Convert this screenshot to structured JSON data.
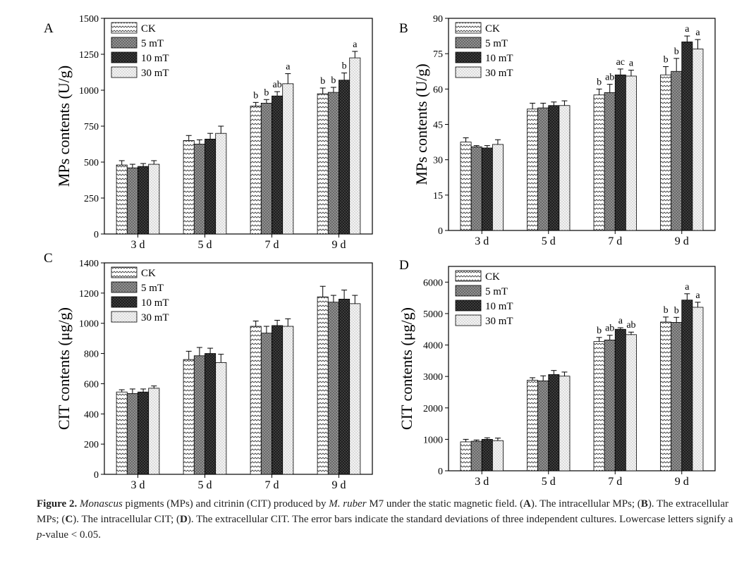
{
  "chart_data": [
    {
      "type": "bar",
      "panel_label": "A",
      "ylabel": "MPs contents (U/g)",
      "yticks": [
        "0",
        "250",
        "500",
        "750",
        "1000",
        "1250",
        "1500"
      ],
      "ylim": [
        0,
        1500
      ],
      "categories": [
        "3 d",
        "5 d",
        "7 d",
        "9 d"
      ],
      "legend_position": "top-left",
      "series": [
        {
          "name": "CK",
          "values": [
            480,
            650,
            890,
            975
          ],
          "errors": [
            30,
            35,
            25,
            40
          ],
          "letters": [
            "",
            "",
            "b",
            "b"
          ]
        },
        {
          "name": "5 mT",
          "values": [
            460,
            625,
            910,
            985
          ],
          "errors": [
            25,
            30,
            25,
            35
          ],
          "letters": [
            "",
            "",
            "b",
            "b"
          ]
        },
        {
          "name": "10 mT",
          "values": [
            470,
            660,
            960,
            1070
          ],
          "errors": [
            20,
            40,
            30,
            50
          ],
          "letters": [
            "",
            "",
            "ab",
            "b"
          ]
        },
        {
          "name": "30 mT",
          "values": [
            485,
            700,
            1045,
            1225
          ],
          "errors": [
            25,
            50,
            70,
            45
          ],
          "letters": [
            "",
            "",
            "a",
            "a"
          ]
        }
      ]
    },
    {
      "type": "bar",
      "panel_label": "B",
      "ylabel": "MPs contents (U/g)",
      "yticks": [
        "0",
        "15",
        "30",
        "45",
        "60",
        "75",
        "90"
      ],
      "ylim": [
        0,
        90
      ],
      "categories": [
        "3 d",
        "5 d",
        "7 d",
        "9 d"
      ],
      "legend_position": "top-left",
      "series": [
        {
          "name": "CK",
          "values": [
            37.5,
            51.5,
            57.5,
            66
          ],
          "errors": [
            1.8,
            2.5,
            2.5,
            3.5
          ],
          "letters": [
            "",
            "",
            "b",
            "b"
          ]
        },
        {
          "name": "5 mT",
          "values": [
            35.5,
            52,
            58.5,
            67.5
          ],
          "errors": [
            0.5,
            2,
            3.5,
            5.5
          ],
          "letters": [
            "",
            "",
            "ab",
            "b"
          ]
        },
        {
          "name": "10 mT",
          "values": [
            35,
            53,
            66,
            80
          ],
          "errors": [
            1,
            1.5,
            2.5,
            2.5
          ],
          "letters": [
            "",
            "",
            "ac",
            "a"
          ]
        },
        {
          "name": "30 mT",
          "values": [
            36.5,
            53,
            65.5,
            77
          ],
          "errors": [
            2,
            2,
            2.5,
            4
          ],
          "letters": [
            "",
            "",
            "a",
            "a"
          ]
        }
      ]
    },
    {
      "type": "bar",
      "panel_label": "C",
      "ylabel": "CIT contents (μg/g)",
      "yticks": [
        "0",
        "200",
        "400",
        "600",
        "800",
        "1000",
        "1200",
        "1400"
      ],
      "ylim": [
        0,
        1400
      ],
      "categories": [
        "3 d",
        "5 d",
        "7 d",
        "9 d"
      ],
      "legend_position": "top-left",
      "series": [
        {
          "name": "CK",
          "values": [
            545,
            760,
            980,
            1175
          ],
          "errors": [
            15,
            55,
            35,
            70
          ],
          "letters": [
            "",
            "",
            "",
            ""
          ]
        },
        {
          "name": "5 mT",
          "values": [
            535,
            785,
            935,
            1140
          ],
          "errors": [
            30,
            55,
            45,
            45
          ],
          "letters": [
            "",
            "",
            "",
            ""
          ]
        },
        {
          "name": "10 mT",
          "values": [
            545,
            800,
            985,
            1160
          ],
          "errors": [
            20,
            35,
            35,
            60
          ],
          "letters": [
            "",
            "",
            "",
            ""
          ]
        },
        {
          "name": "30 mT",
          "values": [
            570,
            740,
            980,
            1130
          ],
          "errors": [
            15,
            55,
            50,
            55
          ],
          "letters": [
            "",
            "",
            "",
            ""
          ]
        }
      ]
    },
    {
      "type": "bar",
      "panel_label": "D",
      "ylabel": "CIT contents (μg/g)",
      "yticks": [
        "0",
        "1000",
        "2000",
        "3000",
        "4000",
        "5000",
        "6000"
      ],
      "ylim": [
        0,
        6500
      ],
      "categories": [
        "3 d",
        "5 d",
        "7 d",
        "9 d"
      ],
      "legend_position": "top-left",
      "series": [
        {
          "name": "CK",
          "values": [
            920,
            2880,
            4110,
            4730
          ],
          "errors": [
            80,
            80,
            130,
            160
          ],
          "letters": [
            "",
            "",
            "b",
            "b"
          ]
        },
        {
          "name": "5 mT",
          "values": [
            940,
            2860,
            4160,
            4720
          ],
          "errors": [
            40,
            160,
            150,
            160
          ],
          "letters": [
            "",
            "",
            "ab",
            "b"
          ]
        },
        {
          "name": "10 mT",
          "values": [
            1000,
            3060,
            4500,
            5430
          ],
          "errors": [
            50,
            130,
            50,
            200
          ],
          "letters": [
            "",
            "",
            "a",
            "a"
          ]
        },
        {
          "name": "30 mT",
          "values": [
            960,
            3010,
            4330,
            5200
          ],
          "errors": [
            80,
            130,
            80,
            160
          ],
          "letters": [
            "",
            "",
            "ab",
            "a"
          ]
        }
      ]
    }
  ],
  "caption": {
    "figure_label": "Figure 2.",
    "italic_genus": "Monascus",
    "text_1": " pigments (MPs) and citrinin (CIT) produced by ",
    "italic_species": "M. ruber",
    "text_2": " M7 under the static magnetic field. (",
    "label_a": "A",
    "text_3": "). The intracellular MPs; (",
    "label_b": "B",
    "text_4": "). The extracellular MPs; (",
    "label_c": "C",
    "text_5": "). The intracellular CIT; (",
    "label_d": "D",
    "text_6": "). The extracellular CIT. The error bars indicate the standard deviations of three independent cultures. Lowercase letters signify a ",
    "italic_p": "p",
    "text_7": "-value < 0.05."
  }
}
